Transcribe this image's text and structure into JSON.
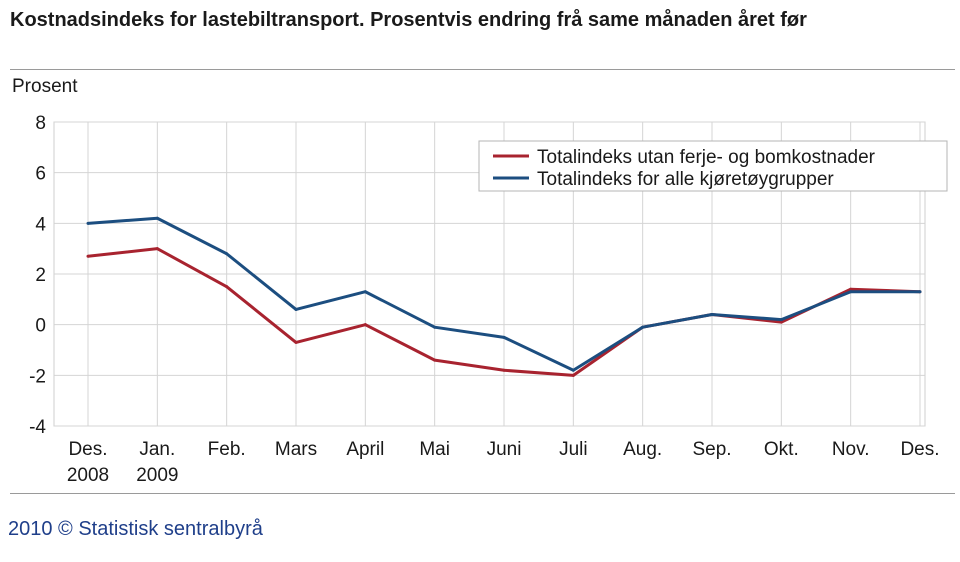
{
  "title": "Kostnadsindeks for lastebiltransport. Prosentvis endring frå same månaden året før",
  "footer": "2010 © Statistisk sentralbyrå",
  "chart_data": {
    "type": "line",
    "title": "Kostnadsindeks for lastebiltransport. Prosentvis endring frå same månaden året før",
    "ylabel": "Prosent",
    "xlabel": "",
    "ylim": [
      -4,
      8
    ],
    "yticks": [
      8,
      6,
      4,
      2,
      0,
      -2,
      -4
    ],
    "grid": true,
    "legend_position": "top-right",
    "categories": [
      [
        "Des.",
        "2008"
      ],
      [
        "Jan.",
        "2009"
      ],
      [
        "Feb."
      ],
      [
        "Mars"
      ],
      [
        "April"
      ],
      [
        "Mai"
      ],
      [
        "Juni"
      ],
      [
        "Juli"
      ],
      [
        "Aug."
      ],
      [
        "Sep."
      ],
      [
        "Okt."
      ],
      [
        "Nov."
      ],
      [
        "Des."
      ]
    ],
    "series": [
      {
        "name": "Totalindeks utan ferje- og bomkostnader",
        "color": "#a8232f",
        "values": [
          2.7,
          3.0,
          1.5,
          -0.7,
          0.0,
          -1.4,
          -1.8,
          -2.0,
          -0.1,
          0.4,
          0.1,
          1.4,
          1.3
        ]
      },
      {
        "name": "Totalindeks for alle kjøretøygrupper",
        "color": "#1c4e80",
        "values": [
          4.0,
          4.2,
          2.8,
          0.6,
          1.3,
          -0.1,
          -0.5,
          -1.8,
          -0.1,
          0.4,
          0.2,
          1.3,
          1.3
        ]
      }
    ]
  }
}
